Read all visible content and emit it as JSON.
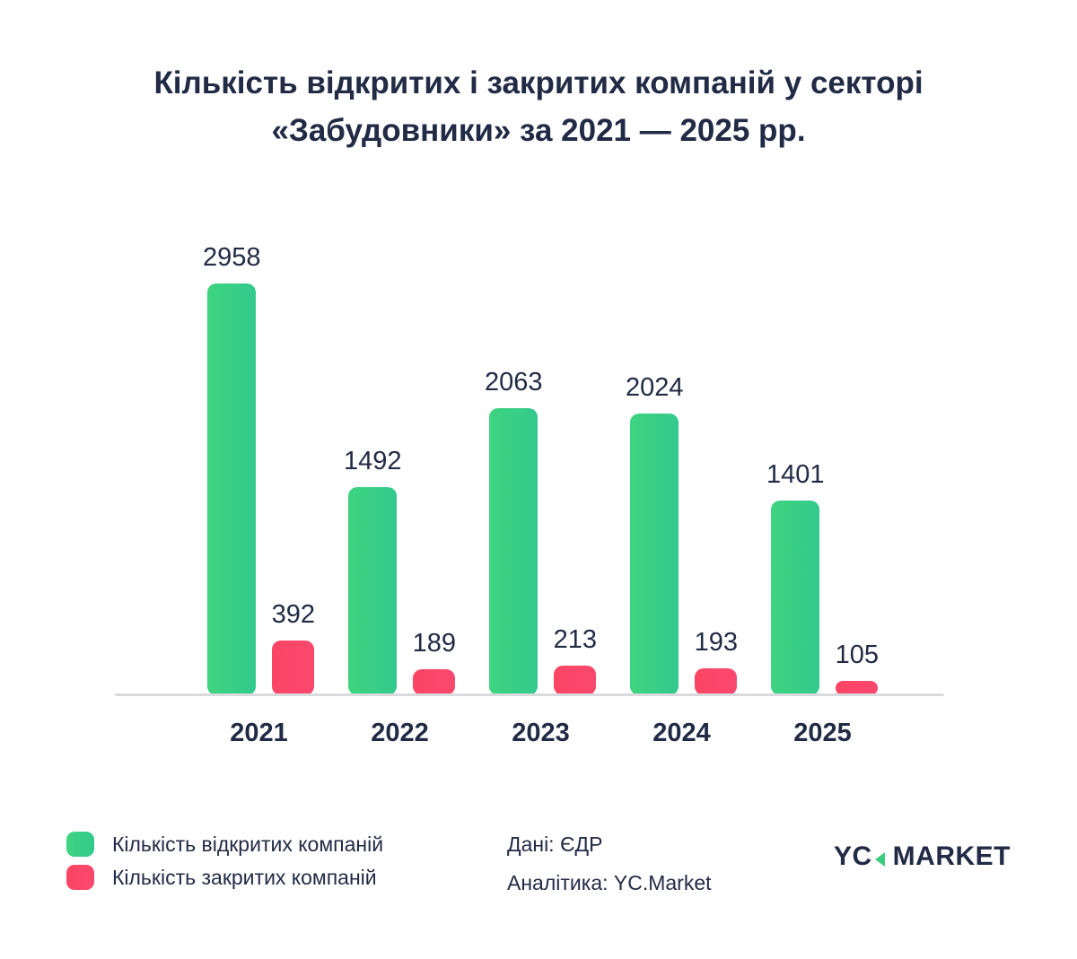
{
  "title": {
    "line1": "Кількість відкритих і закритих компаній у секторі",
    "line2": "«Забудовники» за 2021 — 2025 рр."
  },
  "chart_data": {
    "type": "bar",
    "categories": [
      "2021",
      "2022",
      "2023",
      "2024",
      "2025"
    ],
    "series": [
      {
        "name": "Кількість відкритих компаній",
        "color": "#3ed47f",
        "color2": "#32c98d",
        "values": [
          2958,
          1492,
          2063,
          2024,
          1401
        ]
      },
      {
        "name": "Кількість закритих компаній",
        "color": "#fb4564",
        "color2": "#f9486e",
        "values": [
          392,
          189,
          213,
          193,
          105
        ]
      }
    ],
    "ylim": [
      0,
      2958
    ],
    "grid": false,
    "value_labels": true,
    "legend_position": "bottom-left",
    "axis_line_color": "#d8dade"
  },
  "source": {
    "data": "Дані: ЄДР",
    "analytics": "Аналітика: YC.Market"
  },
  "logo": {
    "left": "YC",
    "right": "MARKET",
    "accent_color": "#3ecb7e",
    "text_color": "#222b45"
  }
}
